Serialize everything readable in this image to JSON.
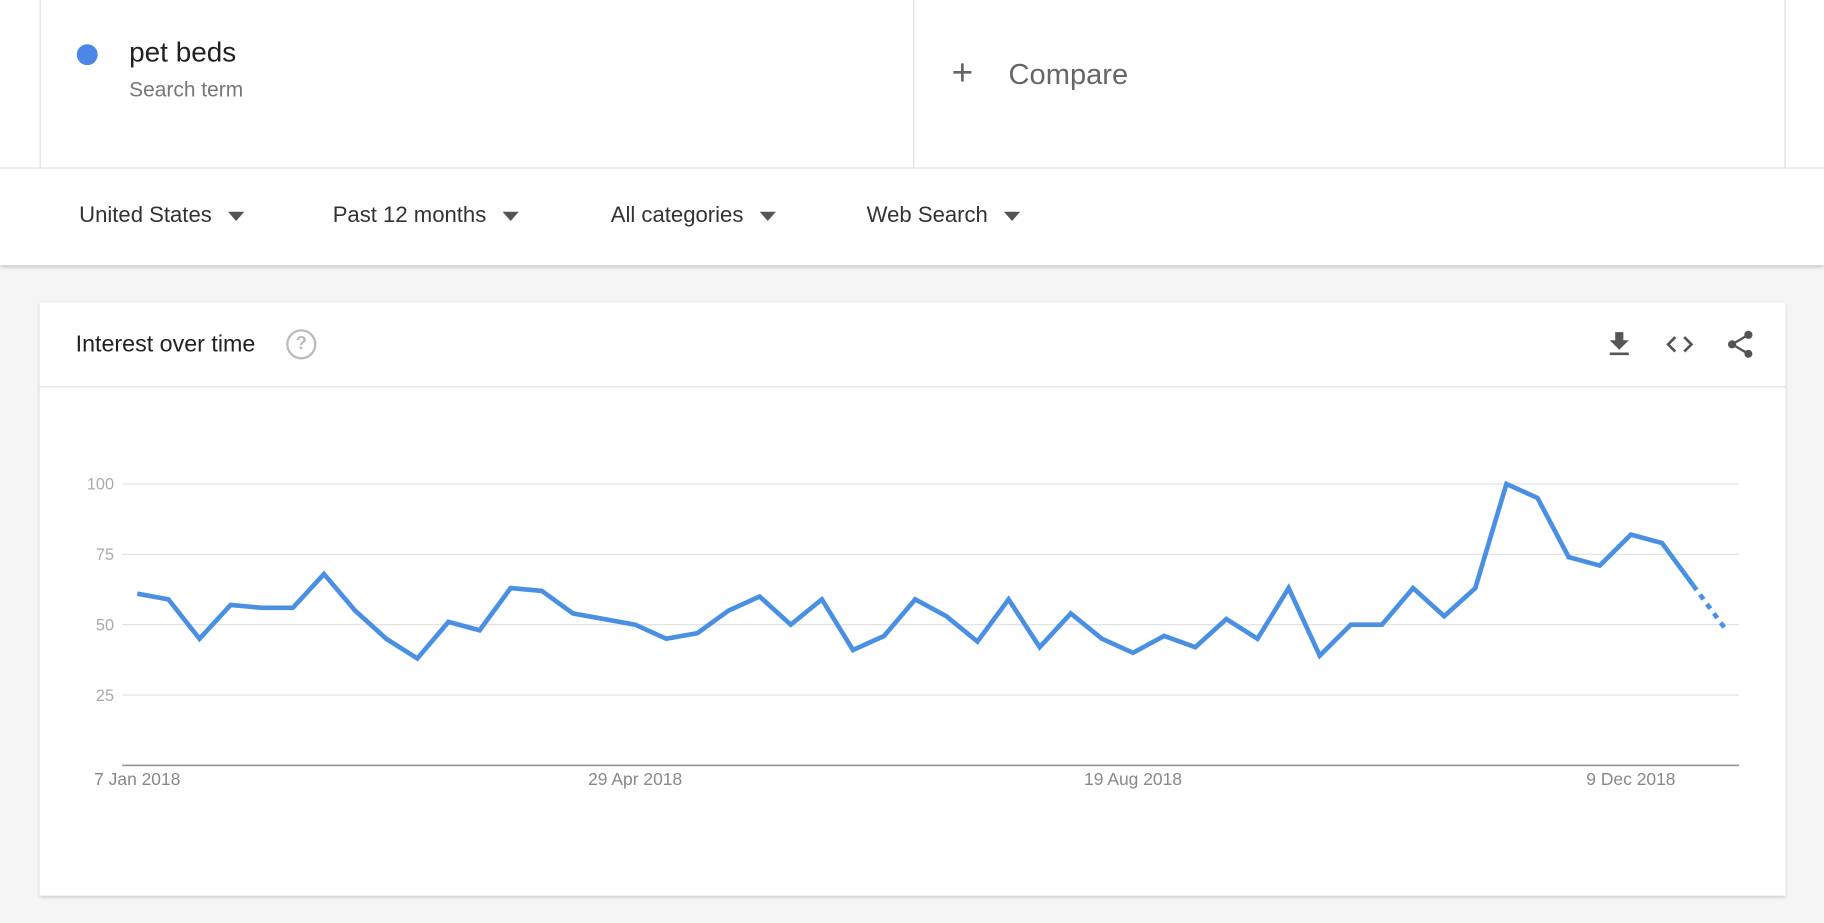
{
  "search_term": {
    "name": "pet beds",
    "label": "Search term",
    "color": "#4e86e8"
  },
  "compare": {
    "icon": "plus-icon",
    "label": "Compare"
  },
  "filters": [
    {
      "label": "United States"
    },
    {
      "label": "Past 12 months"
    },
    {
      "label": "All categories"
    },
    {
      "label": "Web Search"
    }
  ],
  "card": {
    "title": "Interest over time",
    "help_icon": "?",
    "actions": [
      "download-icon",
      "embed-icon",
      "share-icon"
    ]
  },
  "chart_data": {
    "type": "line",
    "title": "",
    "xlabel": "",
    "ylabel": "",
    "ylim": [
      0,
      100
    ],
    "yticks": [
      25,
      50,
      75,
      100
    ],
    "xtick_labels": [
      "7 Jan 2018",
      "29 Apr 2018",
      "19 Aug 2018",
      "9 Dec 2018"
    ],
    "grid": true,
    "color": "#4a90e2",
    "partial_last_point": true,
    "series": [
      {
        "name": "pet beds",
        "values": [
          61,
          59,
          45,
          57,
          56,
          56,
          68,
          55,
          45,
          38,
          51,
          48,
          63,
          62,
          54,
          52,
          50,
          45,
          47,
          55,
          60,
          50,
          59,
          41,
          46,
          59,
          53,
          44,
          59,
          42,
          54,
          45,
          40,
          46,
          42,
          52,
          45,
          63,
          39,
          50,
          50,
          63,
          53,
          63,
          100,
          95,
          74,
          71,
          82,
          79,
          64,
          49
        ]
      }
    ]
  }
}
